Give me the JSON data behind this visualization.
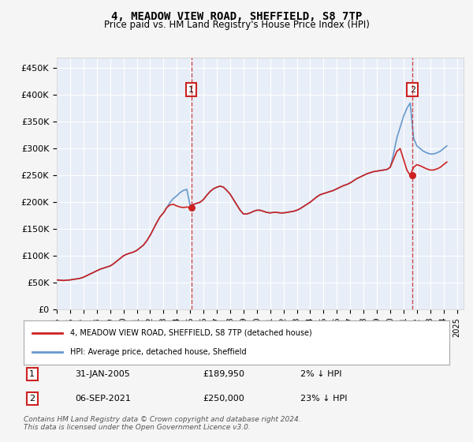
{
  "title": "4, MEADOW VIEW ROAD, SHEFFIELD, S8 7TP",
  "subtitle": "Price paid vs. HM Land Registry's House Price Index (HPI)",
  "ylabel_ticks": [
    "£0",
    "£50K",
    "£100K",
    "£150K",
    "£200K",
    "£250K",
    "£300K",
    "£350K",
    "£400K",
    "£450K"
  ],
  "ylim": [
    0,
    470000
  ],
  "xlim_start": 1995.0,
  "xlim_end": 2025.5,
  "background_color": "#e8eef7",
  "plot_bg_color": "#e8eef7",
  "grid_color": "#ffffff",
  "hpi_color": "#6699cc",
  "price_color": "#cc2222",
  "sale1_x": 2005.08,
  "sale1_y": 189950,
  "sale2_x": 2021.67,
  "sale2_y": 250000,
  "sale1_label": "31-JAN-2005",
  "sale1_price": "£189,950",
  "sale1_hpi": "2% ↓ HPI",
  "sale2_label": "06-SEP-2021",
  "sale2_price": "£250,000",
  "sale2_hpi": "23% ↓ HPI",
  "legend_line1": "4, MEADOW VIEW ROAD, SHEFFIELD, S8 7TP (detached house)",
  "legend_line2": "HPI: Average price, detached house, Sheffield",
  "footer": "Contains HM Land Registry data © Crown copyright and database right 2024.\nThis data is licensed under the Open Government Licence v3.0.",
  "hpi_data": {
    "years": [
      1995.0,
      1995.25,
      1995.5,
      1995.75,
      1996.0,
      1996.25,
      1996.5,
      1996.75,
      1997.0,
      1997.25,
      1997.5,
      1997.75,
      1998.0,
      1998.25,
      1998.5,
      1998.75,
      1999.0,
      1999.25,
      1999.5,
      1999.75,
      2000.0,
      2000.25,
      2000.5,
      2000.75,
      2001.0,
      2001.25,
      2001.5,
      2001.75,
      2002.0,
      2002.25,
      2002.5,
      2002.75,
      2003.0,
      2003.25,
      2003.5,
      2003.75,
      2004.0,
      2004.25,
      2004.5,
      2004.75,
      2005.0,
      2005.25,
      2005.5,
      2005.75,
      2006.0,
      2006.25,
      2006.5,
      2006.75,
      2007.0,
      2007.25,
      2007.5,
      2007.75,
      2008.0,
      2008.25,
      2008.5,
      2008.75,
      2009.0,
      2009.25,
      2009.5,
      2009.75,
      2010.0,
      2010.25,
      2010.5,
      2010.75,
      2011.0,
      2011.25,
      2011.5,
      2011.75,
      2012.0,
      2012.25,
      2012.5,
      2012.75,
      2013.0,
      2013.25,
      2013.5,
      2013.75,
      2014.0,
      2014.25,
      2014.5,
      2014.75,
      2015.0,
      2015.25,
      2015.5,
      2015.75,
      2016.0,
      2016.25,
      2016.5,
      2016.75,
      2017.0,
      2017.25,
      2017.5,
      2017.75,
      2018.0,
      2018.25,
      2018.5,
      2018.75,
      2019.0,
      2019.25,
      2019.5,
      2019.75,
      2020.0,
      2020.25,
      2020.5,
      2020.75,
      2021.0,
      2021.25,
      2021.5,
      2021.75,
      2022.0,
      2022.25,
      2022.5,
      2022.75,
      2023.0,
      2023.25,
      2023.5,
      2023.75,
      2024.0,
      2024.25
    ],
    "values": [
      55000,
      54500,
      54000,
      54500,
      55000,
      56000,
      57000,
      58000,
      60000,
      63000,
      66000,
      69000,
      72000,
      75000,
      77000,
      79000,
      81000,
      85000,
      90000,
      95000,
      100000,
      103000,
      105000,
      107000,
      110000,
      115000,
      120000,
      128000,
      138000,
      150000,
      162000,
      173000,
      180000,
      190000,
      200000,
      207000,
      212000,
      218000,
      222000,
      224000,
      194000,
      196000,
      198000,
      200000,
      205000,
      213000,
      220000,
      225000,
      228000,
      230000,
      228000,
      222000,
      215000,
      205000,
      195000,
      185000,
      178000,
      178000,
      180000,
      183000,
      185000,
      185000,
      183000,
      181000,
      180000,
      181000,
      181000,
      180000,
      180000,
      181000,
      182000,
      183000,
      185000,
      188000,
      192000,
      196000,
      200000,
      205000,
      210000,
      214000,
      216000,
      218000,
      220000,
      222000,
      225000,
      228000,
      231000,
      233000,
      236000,
      240000,
      244000,
      247000,
      250000,
      253000,
      255000,
      257000,
      258000,
      259000,
      260000,
      261000,
      265000,
      290000,
      320000,
      340000,
      360000,
      375000,
      385000,
      320000,
      305000,
      300000,
      295000,
      292000,
      290000,
      290000,
      292000,
      295000,
      300000,
      305000
    ]
  },
  "price_data": {
    "years": [
      1995.0,
      1995.25,
      1995.5,
      1995.75,
      1996.0,
      1996.25,
      1996.5,
      1996.75,
      1997.0,
      1997.25,
      1997.5,
      1997.75,
      1998.0,
      1998.25,
      1998.5,
      1998.75,
      1999.0,
      1999.25,
      1999.5,
      1999.75,
      2000.0,
      2000.25,
      2000.5,
      2000.75,
      2001.0,
      2001.25,
      2001.5,
      2001.75,
      2002.0,
      2002.25,
      2002.5,
      2002.75,
      2003.0,
      2003.25,
      2003.5,
      2003.75,
      2004.0,
      2004.25,
      2004.5,
      2004.75,
      2005.0,
      2005.25,
      2005.5,
      2005.75,
      2006.0,
      2006.25,
      2006.5,
      2006.75,
      2007.0,
      2007.25,
      2007.5,
      2007.75,
      2008.0,
      2008.25,
      2008.5,
      2008.75,
      2009.0,
      2009.25,
      2009.5,
      2009.75,
      2010.0,
      2010.25,
      2010.5,
      2010.75,
      2011.0,
      2011.25,
      2011.5,
      2011.75,
      2012.0,
      2012.25,
      2012.5,
      2012.75,
      2013.0,
      2013.25,
      2013.5,
      2013.75,
      2014.0,
      2014.25,
      2014.5,
      2014.75,
      2015.0,
      2015.25,
      2015.5,
      2015.75,
      2016.0,
      2016.25,
      2016.5,
      2016.75,
      2017.0,
      2017.25,
      2017.5,
      2017.75,
      2018.0,
      2018.25,
      2018.5,
      2018.75,
      2019.0,
      2019.25,
      2019.5,
      2019.75,
      2020.0,
      2020.25,
      2020.5,
      2020.75,
      2021.0,
      2021.25,
      2021.5,
      2021.75,
      2022.0,
      2022.25,
      2022.5,
      2022.75,
      2023.0,
      2023.25,
      2023.5,
      2023.75,
      2024.0,
      2024.25
    ],
    "values": [
      55000,
      54500,
      54000,
      54500,
      55000,
      56000,
      57000,
      58000,
      60000,
      63000,
      66000,
      69000,
      72000,
      75000,
      77000,
      79000,
      81000,
      85000,
      90000,
      95000,
      100000,
      103000,
      105000,
      107000,
      110000,
      115000,
      120000,
      128000,
      138000,
      150000,
      162000,
      173000,
      180000,
      190000,
      195000,
      196000,
      193000,
      191000,
      190000,
      191000,
      189950,
      196000,
      198000,
      200000,
      205000,
      213000,
      220000,
      225000,
      228000,
      230000,
      228000,
      222000,
      215000,
      205000,
      195000,
      185000,
      178000,
      178000,
      180000,
      183000,
      185000,
      185000,
      183000,
      181000,
      180000,
      181000,
      181000,
      180000,
      180000,
      181000,
      182000,
      183000,
      185000,
      188000,
      192000,
      196000,
      200000,
      205000,
      210000,
      214000,
      216000,
      218000,
      220000,
      222000,
      225000,
      228000,
      231000,
      233000,
      236000,
      240000,
      244000,
      247000,
      250000,
      253000,
      255000,
      257000,
      258000,
      259000,
      260000,
      261000,
      265000,
      280000,
      295000,
      300000,
      280000,
      260000,
      250000,
      265000,
      270000,
      268000,
      265000,
      262000,
      260000,
      260000,
      262000,
      265000,
      270000,
      275000
    ]
  }
}
